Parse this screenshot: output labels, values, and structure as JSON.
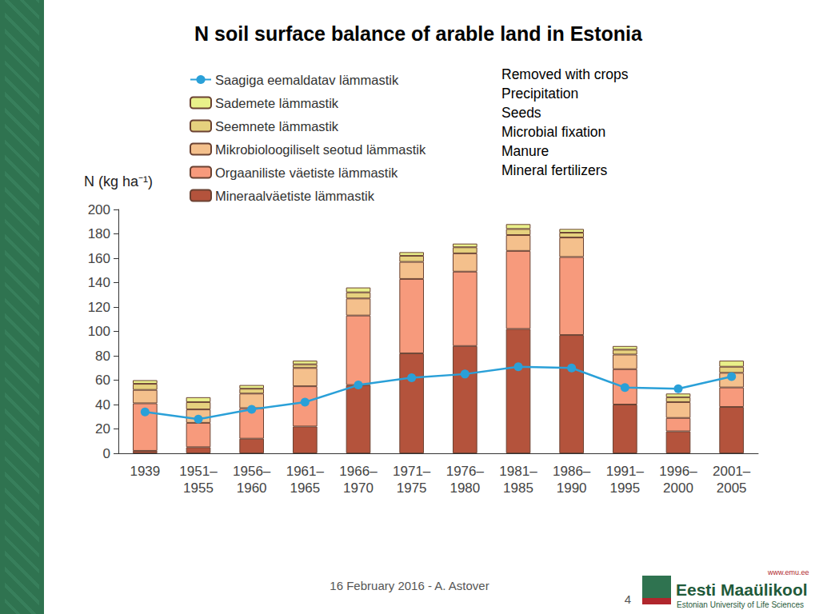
{
  "chart_data": {
    "type": "bar",
    "title": "N soil surface balance of arable land in Estonia",
    "y_label": "N (kg ha⁻¹)",
    "stacked": true,
    "grid": false,
    "legend": "top-left",
    "categories": [
      "1939",
      "1951–1955",
      "1956–1960",
      "1961–1965",
      "1966–1970",
      "1971–1975",
      "1976–1980",
      "1981–1985",
      "1986–1990",
      "1991–1995",
      "1996–2000",
      "2001–2005"
    ],
    "series": [
      {
        "name": "Mineraalväetiste lämmastik",
        "color": "#b4533c",
        "values": [
          2,
          5,
          12,
          22,
          56,
          82,
          88,
          102,
          97,
          40,
          18,
          38
        ]
      },
      {
        "name": "Orgaaniliste väetiste lämmastik",
        "color": "#f79a7c",
        "values": [
          39,
          20,
          25,
          33,
          57,
          61,
          61,
          64,
          64,
          29,
          11,
          16
        ]
      },
      {
        "name": "Mikrobioloogiliselt seotud lämmastik",
        "color": "#f4c08c",
        "values": [
          11,
          11,
          12,
          15,
          14,
          14,
          15,
          13,
          16,
          12,
          13,
          12
        ]
      },
      {
        "name": "Seemnete lämmastik",
        "color": "#e6d17e",
        "values": [
          5,
          6,
          4,
          3,
          5,
          5,
          5,
          5,
          4,
          4,
          4,
          5
        ]
      },
      {
        "name": "Sademete lämmastik",
        "color": "#e9f08a",
        "values": [
          3,
          4,
          3,
          3,
          4,
          3,
          3,
          4,
          3,
          3,
          3,
          5
        ]
      },
      {
        "name": "Saagiga eemaldatav lämmastik",
        "color": "#2aa0d8",
        "type": "line",
        "marker": "circle",
        "values": [
          34,
          28,
          36,
          42,
          56,
          62,
          65,
          71,
          70,
          54,
          53,
          63
        ]
      }
    ],
    "legend_order": [
      "Saagiga eemaldatav lämmastik",
      "Sademete lämmastik",
      "Seemnete lämmastik",
      "Mikrobioloogiliselt seotud lämmastik",
      "Orgaaniliste väetiste lämmastik",
      "Mineraalväetiste lämmastik"
    ],
    "annotations": [
      "Removed with crops",
      "Precipitation",
      "Seeds",
      "Microbial fixation",
      "Manure",
      "Mineral fertilizers"
    ],
    "ylim": [
      0,
      200
    ],
    "yticks": [
      0,
      20,
      40,
      60,
      80,
      100,
      120,
      140,
      160,
      180,
      200
    ]
  },
  "slide": {
    "footer": "16 February 2016 - A. Astover",
    "page_number": 4,
    "logo": {
      "url": "www.emu.ee",
      "name": "Eesti Maaülikool",
      "subtitle": "Estonian University of Life Sciences"
    }
  }
}
